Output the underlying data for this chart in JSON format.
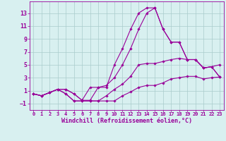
{
  "background_color": "#d8f0f0",
  "grid_color": "#aacccc",
  "line_color": "#990099",
  "xlabel": "Windchill (Refroidissement éolien,°C)",
  "xlabel_fontsize": 6.0,
  "xtick_fontsize": 5.0,
  "ytick_fontsize": 6.0,
  "xlim": [
    -0.5,
    23.5
  ],
  "ylim": [
    -2.0,
    14.8
  ],
  "yticks": [
    -1,
    1,
    3,
    5,
    7,
    9,
    11,
    13
  ],
  "xticks": [
    0,
    1,
    2,
    3,
    4,
    5,
    6,
    7,
    8,
    9,
    10,
    11,
    12,
    13,
    14,
    15,
    16,
    17,
    18,
    19,
    20,
    21,
    22,
    23
  ],
  "line1_x": [
    0,
    1,
    2,
    3,
    4,
    5,
    6,
    7,
    8,
    9,
    10,
    11,
    12,
    13,
    14,
    15,
    16,
    17,
    18,
    19,
    20,
    21,
    22,
    23
  ],
  "line1_y": [
    0.5,
    0.2,
    0.7,
    1.2,
    0.5,
    -0.6,
    -0.6,
    -0.6,
    -0.6,
    -0.6,
    -0.6,
    0.2,
    0.8,
    1.5,
    1.8,
    1.8,
    2.2,
    2.8,
    3.0,
    3.2,
    3.2,
    2.8,
    3.0,
    3.1
  ],
  "line2_x": [
    0,
    1,
    2,
    3,
    4,
    5,
    6,
    7,
    8,
    9,
    10,
    11,
    12,
    13,
    14,
    15,
    16,
    17,
    18,
    19,
    20,
    21,
    22,
    23
  ],
  "line2_y": [
    0.5,
    0.2,
    0.7,
    1.2,
    1.2,
    0.5,
    -0.5,
    1.5,
    1.5,
    1.5,
    5.0,
    7.5,
    10.5,
    13.0,
    13.8,
    13.8,
    10.5,
    8.5,
    8.5,
    5.8,
    5.8,
    4.5,
    4.7,
    3.1
  ],
  "line3_x": [
    0,
    1,
    2,
    3,
    4,
    5,
    6,
    7,
    8,
    9,
    10,
    11,
    12,
    13,
    14,
    15,
    16,
    17,
    18,
    19,
    20,
    21,
    22,
    23
  ],
  "line3_y": [
    0.5,
    0.2,
    0.7,
    1.2,
    1.2,
    0.5,
    -0.5,
    -0.5,
    1.5,
    1.8,
    3.0,
    5.0,
    7.5,
    10.5,
    13.0,
    13.8,
    10.5,
    8.5,
    8.5,
    5.8,
    5.8,
    4.5,
    4.7,
    3.1
  ],
  "line4_x": [
    0,
    1,
    2,
    3,
    4,
    5,
    6,
    7,
    8,
    9,
    10,
    11,
    12,
    13,
    14,
    15,
    16,
    17,
    18,
    19,
    20,
    21,
    22,
    23
  ],
  "line4_y": [
    0.5,
    0.2,
    0.7,
    1.2,
    0.5,
    -0.6,
    -0.6,
    -0.6,
    -0.6,
    0.2,
    1.2,
    2.0,
    3.2,
    5.0,
    5.2,
    5.2,
    5.5,
    5.8,
    6.0,
    5.8,
    5.8,
    4.5,
    4.7,
    5.0
  ],
  "marker": "D",
  "markersize": 1.8,
  "linewidth": 0.8
}
